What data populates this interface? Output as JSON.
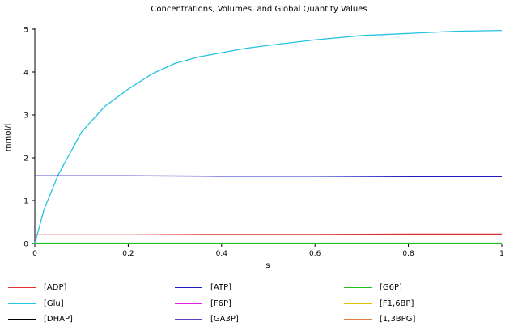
{
  "chart_data": {
    "type": "line",
    "title": "Concentrations, Volumes, and Global Quantity Values",
    "xlabel": "s",
    "ylabel": "mmol/l",
    "xlim": [
      0,
      1
    ],
    "ylim": [
      0,
      5
    ],
    "x_ticks": [
      "0",
      "0.2",
      "0.4",
      "0.6",
      "0.8",
      "1"
    ],
    "y_ticks": [
      "0",
      "1",
      "2",
      "3",
      "4",
      "5"
    ],
    "grid": false,
    "legend_position": "bottom",
    "series": [
      {
        "name": "[ADP]",
        "color": "#e03030",
        "x": [
          0,
          0.2,
          0.4,
          0.6,
          0.8,
          1.0
        ],
        "y": [
          0.2,
          0.2,
          0.21,
          0.21,
          0.22,
          0.22
        ]
      },
      {
        "name": "[ATP]",
        "color": "#1f1fbf",
        "x": [
          0,
          0.2,
          0.4,
          0.6,
          0.8,
          1.0
        ],
        "y": [
          1.58,
          1.58,
          1.57,
          1.57,
          1.56,
          1.56
        ]
      },
      {
        "name": "[G6P]",
        "color": "#22c022",
        "x": [
          0,
          0.2,
          0.4,
          0.6,
          0.8,
          1.0
        ],
        "y": [
          0.01,
          0.01,
          0.01,
          0.01,
          0.01,
          0.01
        ]
      },
      {
        "name": "[Glu]",
        "color": "#25c3e0",
        "x": [
          0,
          0.02,
          0.05,
          0.1,
          0.15,
          0.2,
          0.25,
          0.3,
          0.35,
          0.4,
          0.45,
          0.5,
          0.6,
          0.7,
          0.8,
          0.9,
          1.0
        ],
        "y": [
          0,
          0.8,
          1.6,
          2.6,
          3.2,
          3.6,
          3.95,
          4.2,
          4.35,
          4.45,
          4.55,
          4.62,
          4.75,
          4.85,
          4.9,
          4.95,
          4.97
        ]
      },
      {
        "name": "[F6P]",
        "color": "#e020e0",
        "x": [
          0,
          0.2,
          0.4,
          0.6,
          0.8,
          1.0
        ],
        "y": [
          0,
          0,
          0,
          0,
          0,
          0
        ]
      },
      {
        "name": "[F1,6BP]",
        "color": "#e0c000",
        "x": [
          0,
          0.2,
          0.4,
          0.6,
          0.8,
          1.0
        ],
        "y": [
          0,
          0,
          0,
          0,
          0,
          0
        ]
      },
      {
        "name": "[DHAP]",
        "color": "#000000",
        "x": [
          0,
          0.2,
          0.4,
          0.6,
          0.8,
          1.0
        ],
        "y": [
          0,
          0,
          0,
          0,
          0,
          0
        ]
      },
      {
        "name": "[GA3P]",
        "color": "#6040c0",
        "x": [
          0,
          0.2,
          0.4,
          0.6,
          0.8,
          1.0
        ],
        "y": [
          0,
          0,
          0,
          0,
          0,
          0
        ]
      },
      {
        "name": "[1,3BPG]",
        "color": "#e08040",
        "x": [
          0,
          0.2,
          0.4,
          0.6,
          0.8,
          1.0
        ],
        "y": [
          0,
          0,
          0,
          0,
          0,
          0
        ]
      }
    ]
  }
}
